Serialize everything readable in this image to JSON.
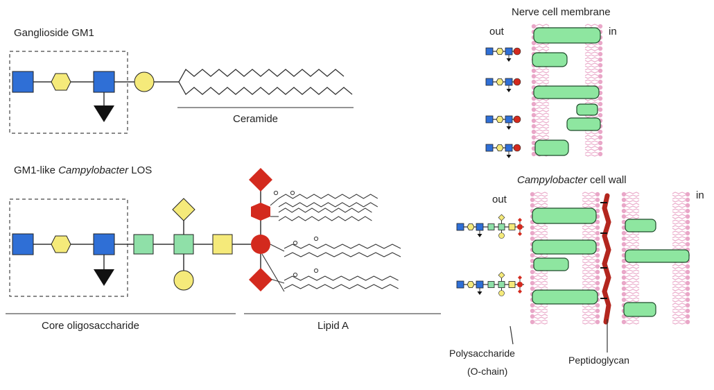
{
  "gm1": {
    "title": "Ganglioside GM1",
    "ceramide_label": "Ceramide"
  },
  "los": {
    "title_prefix": "GM1-like ",
    "title_italic": "Campylobacter",
    "title_suffix": " LOS",
    "core_label": "Core oligosaccharide",
    "lipid_label": "Lipid A"
  },
  "nerve": {
    "title": "Nerve cell membrane",
    "out_label": "out",
    "in_label": "in"
  },
  "wall": {
    "title_italic": "Campylobacter",
    "title_suffix": " cell wall",
    "out_label": "out",
    "in_label": "in",
    "polysaccharide_line1": "Polysaccharide",
    "polysaccharide_line2": "(O-chain)",
    "peptidoglycan_label": "Peptidoglycan"
  },
  "colors": {
    "glcnac_blue": "#2f6fd6",
    "gal_yellow": "#f5ea7a",
    "neuac_black": "#111111",
    "kdo_red": "#d32a1e",
    "hep_green": "#8fe0a8",
    "protein_green": "#8ee6a0",
    "lipid_pink": "#e9a7c8",
    "peptidoglycan_red": "#b3261e"
  }
}
